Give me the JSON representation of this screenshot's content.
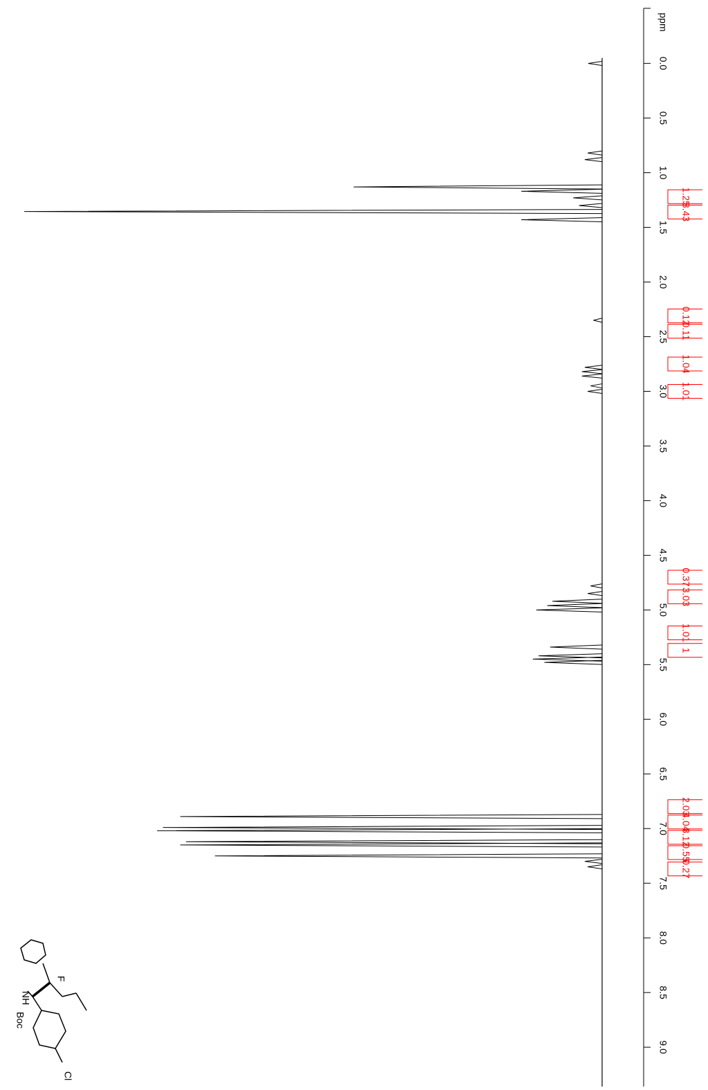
{
  "chart_data": {
    "type": "nmr",
    "x_label": "ppm",
    "xlim": [
      -0.58,
      9.36
    ],
    "xticks": [
      {
        "value": 0,
        "label": "0.0"
      },
      {
        "value": 0.5,
        "label": "0.5"
      },
      {
        "value": 1,
        "label": "1.0"
      },
      {
        "value": 1.5,
        "label": "1.5"
      },
      {
        "value": 2,
        "label": "2.0"
      },
      {
        "value": 2.5,
        "label": "2.5"
      },
      {
        "value": 3,
        "label": "3.0"
      },
      {
        "value": 3.5,
        "label": "3.5"
      },
      {
        "value": 4,
        "label": "4.0"
      },
      {
        "value": 4.5,
        "label": "4.5"
      },
      {
        "value": 5,
        "label": "5.0"
      },
      {
        "value": 5.5,
        "label": "5.5"
      },
      {
        "value": 6,
        "label": "6.0"
      },
      {
        "value": 6.5,
        "label": "6.5"
      },
      {
        "value": 7,
        "label": "7.0"
      },
      {
        "value": 7.5,
        "label": "7.5"
      },
      {
        "value": 8,
        "label": "8.0"
      },
      {
        "value": 8.5,
        "label": "8.5"
      },
      {
        "value": 9,
        "label": "9.0"
      }
    ],
    "ylim": [
      0,
      100
    ],
    "color": "#000000",
    "peaks": {
      "ppm": [
        0.0,
        0.82,
        0.88,
        1.13,
        1.17,
        1.23,
        1.3,
        1.355,
        1.43,
        2.35,
        2.78,
        2.82,
        2.86,
        2.95,
        3.0,
        4.78,
        4.85,
        4.92,
        4.96,
        5.0,
        5.34,
        5.42,
        5.45,
        5.48,
        6.89,
        6.99,
        7.02,
        7.12,
        7.15,
        7.25,
        7.3,
        7.35
      ],
      "values": [
        2.4,
        2.5,
        3,
        43,
        14,
        5,
        4,
        100,
        14,
        1.5,
        3,
        3.5,
        3.5,
        2,
        2.5,
        2,
        2.5,
        8.6,
        9.5,
        11.4,
        9,
        11,
        12,
        10,
        73,
        76,
        77,
        72,
        73,
        67,
        3,
        2.5
      ]
    },
    "integral_color": "#ff0000",
    "integrals": {
      "ppm": [
        1.22,
        1.36,
        2.31,
        2.45,
        2.75,
        3.0,
        4.7,
        4.88,
        5.21,
        5.37,
        6.8,
        6.94,
        7.08,
        7.22,
        7.37
      ],
      "values": [
        1.25,
        8.43,
        0.12,
        0.11,
        1.04,
        1.01,
        0.37,
        3.03,
        1.01,
        1.0,
        2.03,
        4.04,
        3.12,
        0.55,
        0.27
      ]
    }
  },
  "structure": {
    "labels": [
      "Boc",
      "NH",
      "F",
      "Cl"
    ]
  }
}
